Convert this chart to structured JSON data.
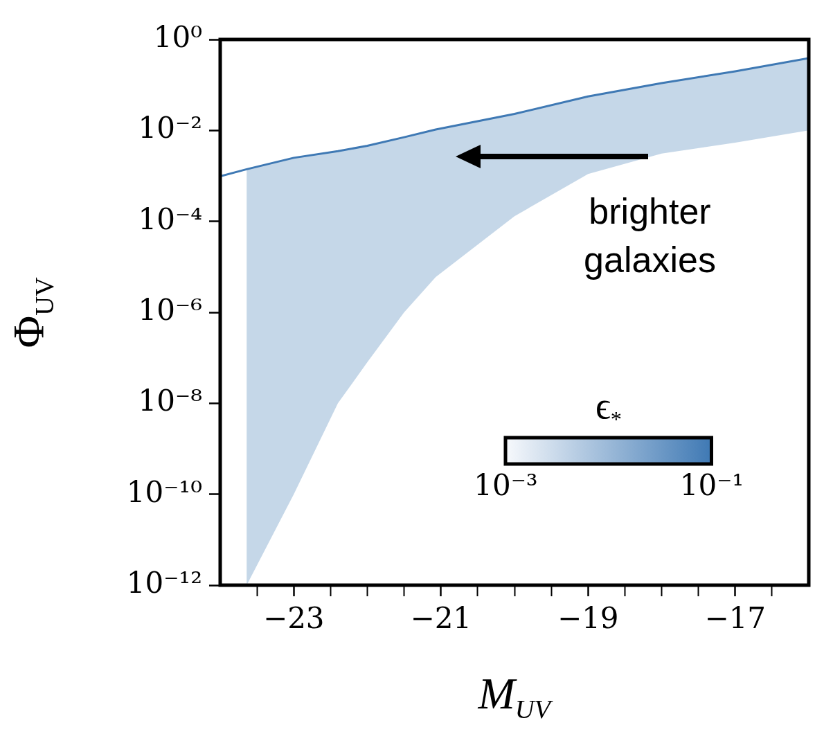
{
  "chart_data": {
    "type": "line",
    "xlabel": "M$_{UV}$",
    "ylabel": "Φ$_{UV}$",
    "log": "y",
    "xlim": [
      -24,
      -16
    ],
    "ylim": [
      1e-12,
      1
    ],
    "xticks": [
      {
        "value": -23.5,
        "label": null
      },
      {
        "value": -23,
        "label": "−23"
      },
      {
        "value": -22.5,
        "label": null
      },
      {
        "value": -22,
        "label": null
      },
      {
        "value": -21.5,
        "label": null
      },
      {
        "value": -21,
        "label": "−21"
      },
      {
        "value": -20.5,
        "label": null
      },
      {
        "value": -20,
        "label": null
      },
      {
        "value": -19.5,
        "label": null
      },
      {
        "value": -19,
        "label": "−19"
      },
      {
        "value": -18.5,
        "label": null
      },
      {
        "value": -18,
        "label": null
      },
      {
        "value": -17.5,
        "label": null
      },
      {
        "value": -17,
        "label": "−17"
      },
      {
        "value": -16.5,
        "label": null
      }
    ],
    "yticks": [
      {
        "value": 1e-12,
        "label": "10⁻¹²"
      },
      {
        "value": 1e-10,
        "label": "10⁻¹⁰"
      },
      {
        "value": 1e-08,
        "label": "10⁻⁸"
      },
      {
        "value": 1e-06,
        "label": "10⁻⁶"
      },
      {
        "value": 0.0001,
        "label": "10⁻⁴"
      },
      {
        "value": 0.01,
        "label": "10⁻²"
      },
      {
        "value": 1,
        "label": "10⁰"
      }
    ],
    "series": [
      {
        "color": "#3f79b4",
        "x": [
          -24,
          -23.64,
          -23,
          -22.4,
          -22,
          -21.5,
          -21.07,
          -20,
          -19,
          -18,
          -17,
          -16
        ],
        "values": [
          0.00098,
          0.0014,
          0.0025,
          0.0035,
          0.0046,
          0.0071,
          0.0105,
          0.023,
          0.056,
          0.11,
          0.2,
          0.39
        ],
        "upper": [
          null,
          0.0014,
          0.0025,
          0.0035,
          0.0046,
          0.0071,
          0.0105,
          0.023,
          0.056,
          0.11,
          0.2,
          0.39
        ],
        "lower": [
          null,
          1e-12,
          1e-10,
          1e-08,
          8e-08,
          1e-06,
          6e-06,
          0.00013,
          0.0011,
          0.0031,
          0.0054,
          0.01
        ]
      }
    ],
    "clabel": "ϵ$_{*}$",
    "annotations": [
      "brighter galaxies",
      "10⁻³",
      "10⁻¹"
    ]
  }
}
